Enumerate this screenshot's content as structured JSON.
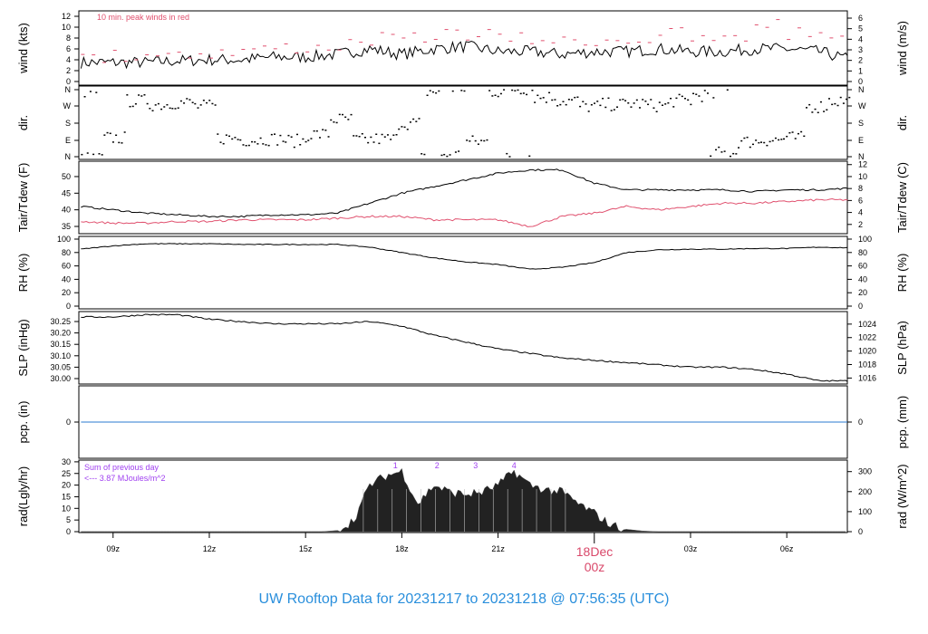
{
  "chart_data": [
    {
      "type": "line",
      "id": "wind",
      "ylabel_left": "wind (kts)",
      "ylabel_right": "wind (m/s)",
      "annotation": "10 min. peak winds in red",
      "ylim": [
        0,
        12
      ],
      "yticks_left": [
        0,
        2,
        4,
        6,
        8,
        10,
        12
      ],
      "yticks_right": [
        0,
        1,
        2,
        3,
        4,
        5,
        6
      ],
      "series": [
        {
          "values": [
            3.5,
            3.5,
            3.5,
            3.8,
            4,
            4,
            4.5,
            4.5,
            5,
            6,
            5,
            6,
            6.5,
            5.5,
            5.5,
            5,
            5.5,
            5.5,
            6,
            5.5,
            5.5,
            6,
            6,
            5.5,
            4
          ]
        },
        {
          "name": "10 min. peak winds",
          "values": [
            5.5,
            6,
            6.5,
            6.5,
            6.5,
            7,
            7.5,
            7.5,
            8,
            9,
            9,
            10,
            10,
            9,
            9,
            8.5,
            9,
            9,
            10,
            9,
            9,
            12,
            10,
            10,
            8
          ]
        }
      ]
    },
    {
      "type": "scatter",
      "id": "dir",
      "ylabel_left": "dir.",
      "ylabel_right": "dir.",
      "yticks": [
        "N",
        "W",
        "S",
        "E",
        "N"
      ],
      "ylim": [
        0,
        360
      ],
      "values": [
        350,
        100,
        300,
        280,
        290,
        270,
        100,
        90,
        95,
        85,
        120,
        200,
        90,
        95,
        180,
        350,
        10,
        80,
        350,
        5,
        320,
        300,
        270,
        280,
        285,
        275,
        300,
        330,
        20,
        80,
        90,
        100,
        270,
        300
      ]
    },
    {
      "type": "line",
      "id": "temp",
      "ylabel_left": "Tair/Tdew (F)",
      "ylabel_right": "Tair/Tdew (C)",
      "yticks_left": [
        35,
        40,
        45,
        50
      ],
      "yticks_right": [
        2,
        4,
        6,
        8,
        10,
        12
      ],
      "series": [
        {
          "name": "Tair",
          "values": [
            41,
            40,
            39,
            38.5,
            38,
            38,
            38.5,
            38.5,
            39,
            42,
            45,
            47,
            49,
            51,
            52,
            52,
            48,
            46,
            46,
            46,
            46,
            45.5,
            46,
            46,
            46.5
          ]
        },
        {
          "name": "Tdew",
          "values": [
            36.5,
            36,
            36,
            36.5,
            36.5,
            37,
            37,
            37,
            37.5,
            38,
            38,
            37,
            37,
            37,
            35,
            38,
            39,
            41,
            40,
            41,
            42,
            42,
            42.5,
            43,
            43
          ]
        }
      ]
    },
    {
      "type": "line",
      "id": "rh",
      "ylabel_left": "RH (%)",
      "ylabel_right": "RH (%)",
      "ylim": [
        0,
        100
      ],
      "yticks_left": [
        0,
        20,
        40,
        60,
        80,
        100
      ],
      "yticks_right": [
        0,
        20,
        40,
        60,
        80,
        100
      ],
      "values": [
        85,
        90,
        93,
        93,
        93,
        92,
        92,
        92,
        92,
        88,
        80,
        72,
        66,
        62,
        55,
        58,
        65,
        80,
        84,
        85,
        85,
        86,
        86,
        88,
        87
      ]
    },
    {
      "type": "line",
      "id": "slp",
      "ylabel_left": "SLP (inHg)",
      "ylabel_right": "SLP (hPa)",
      "yticks_left": [
        "30.00",
        "30.05",
        "30.10",
        "30.15",
        "30.20",
        "30.25"
      ],
      "yticks_right": [
        "1016",
        "1018",
        "1020",
        "1022",
        "1024"
      ],
      "values": [
        30.27,
        30.27,
        30.28,
        30.28,
        30.26,
        30.25,
        30.24,
        30.24,
        30.24,
        30.25,
        30.23,
        30.19,
        30.16,
        30.13,
        30.11,
        30.09,
        30.08,
        30.07,
        30.06,
        30.05,
        30.05,
        30.04,
        30.02,
        29.99,
        29.99
      ]
    },
    {
      "type": "line",
      "id": "pcp",
      "ylabel_left": "pcp. (in)",
      "ylabel_right": "pcp. (mm)",
      "yticks_left": [
        "0"
      ],
      "yticks_right": [
        "0"
      ],
      "values": [
        0,
        0,
        0,
        0,
        0,
        0,
        0,
        0,
        0,
        0,
        0,
        0,
        0,
        0,
        0,
        0,
        0,
        0,
        0,
        0,
        0,
        0,
        0,
        0,
        0
      ]
    },
    {
      "type": "area",
      "id": "rad",
      "ylabel_left": "rad(Lgly/hr)",
      "ylabel_right": "rad (W/m^2)",
      "ylim": [
        0,
        30
      ],
      "yticks_left": [
        0,
        5,
        10,
        15,
        20,
        25,
        30
      ],
      "yticks_right": [
        0,
        100,
        200,
        300
      ],
      "annotation_1": "Sum of previous day",
      "annotation_2": "<--- 3.87 MJoules/m^2",
      "markers": [
        "1",
        "2",
        "3",
        "4"
      ],
      "half_hourly_values": [
        0,
        0,
        0,
        0,
        0,
        0,
        0,
        0,
        0,
        0,
        0,
        0,
        0,
        0,
        0,
        0,
        0.5,
        5,
        20,
        24,
        26,
        12,
        20,
        17,
        16,
        17,
        20,
        26,
        20,
        18,
        17,
        12,
        8,
        3,
        1,
        0.3,
        0,
        0,
        0,
        0,
        0,
        0,
        0,
        0,
        0,
        0,
        0,
        0,
        0
      ]
    }
  ],
  "x_axis": {
    "ticks": [
      "09z",
      "12z",
      "15z",
      "18z",
      "21z",
      "03z",
      "06z"
    ],
    "day_label": "18Dec",
    "day_hour": "00z"
  },
  "title": "UW Rooftop Data for 20231217  to  20231218 @ 07:56:35  (UTC)",
  "colors": {
    "peak": "#e0506e",
    "dew": "#e0506e",
    "pcp": "#2b7bd0",
    "annot": "#a040f0",
    "title": "#2a8fdc",
    "day": "#d9486a"
  }
}
